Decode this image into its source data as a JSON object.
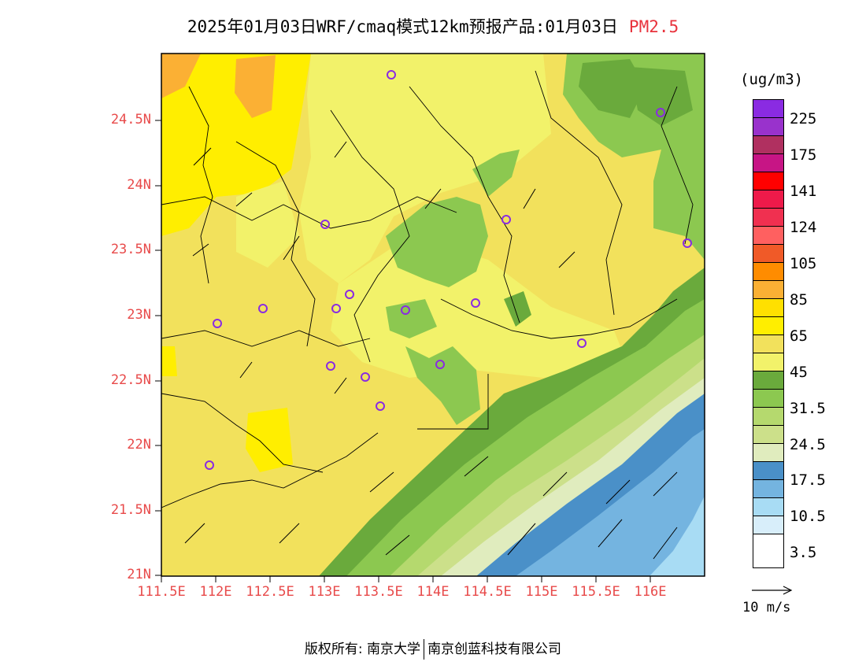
{
  "title": {
    "main": "2025年01月03日WRF/cmaq模式12km预报产品:01月03日",
    "pollutant": "PM2.5"
  },
  "map": {
    "lat_ticks": [
      "21N",
      "21.5N",
      "22N",
      "22.5N",
      "23N",
      "23.5N",
      "24N",
      "24.5N"
    ],
    "lon_ticks": [
      "111.5E",
      "112E",
      "112.5E",
      "113E",
      "113.5E",
      "114E",
      "114.5E",
      "115E",
      "115.5E",
      "116E"
    ]
  },
  "legend": {
    "unit": "(ug/m3)",
    "colors": [
      "#8a2be2",
      "#9932cc",
      "#b03060",
      "#c71585",
      "#ff0000",
      "#ee1a4a",
      "#f03050",
      "#ff6060",
      "#f05a28",
      "#ff8c00",
      "#fbb034",
      "#ffe000",
      "#ffee00",
      "#f2e15c",
      "#f2f26a",
      "#6aaa3c",
      "#8cc850",
      "#b5d96e",
      "#cce08a",
      "#e0ecbe",
      "#4a90c8",
      "#74b4e0",
      "#a8dcf4",
      "#d8eefa",
      "#ffffff"
    ],
    "labels": [
      "225",
      "175",
      "141",
      "124",
      "105",
      "85",
      "65",
      "45",
      "31.5",
      "24.5",
      "17.5",
      "10.5",
      "3.5"
    ]
  },
  "wind_reference": "10 m/s",
  "footer": {
    "left": "版权所有: 南京大学",
    "right": "南京创蓝科技有限公司"
  }
}
